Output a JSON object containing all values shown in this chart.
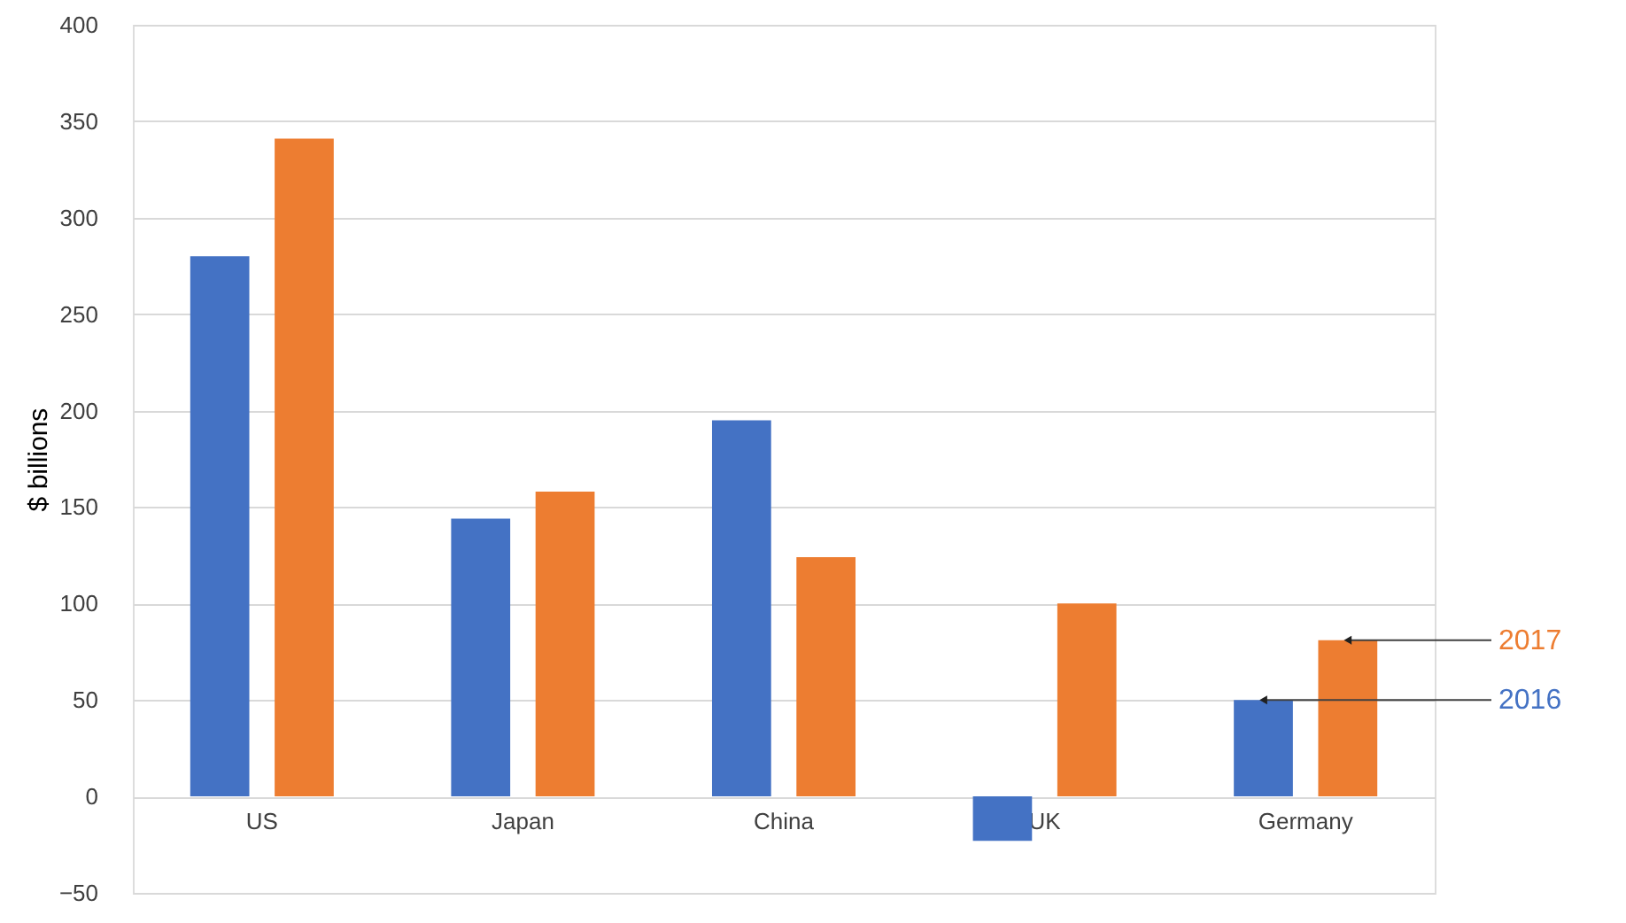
{
  "chart_data": {
    "type": "bar",
    "ylabel": "$ billions",
    "categories": [
      "US",
      "Japan",
      "China",
      "UK",
      "Germany"
    ],
    "series": [
      {
        "name": "2016",
        "color": "#4472c4",
        "values": [
          280,
          144,
          195,
          -23,
          50
        ]
      },
      {
        "name": "2017",
        "color": "#ed7d31",
        "values": [
          341,
          158,
          124,
          100,
          81
        ]
      }
    ],
    "ylim": [
      -50,
      400
    ],
    "yticks": [
      -50,
      0,
      50,
      100,
      150,
      200,
      250,
      300,
      350,
      400
    ],
    "grid": "y",
    "legend": "right"
  }
}
